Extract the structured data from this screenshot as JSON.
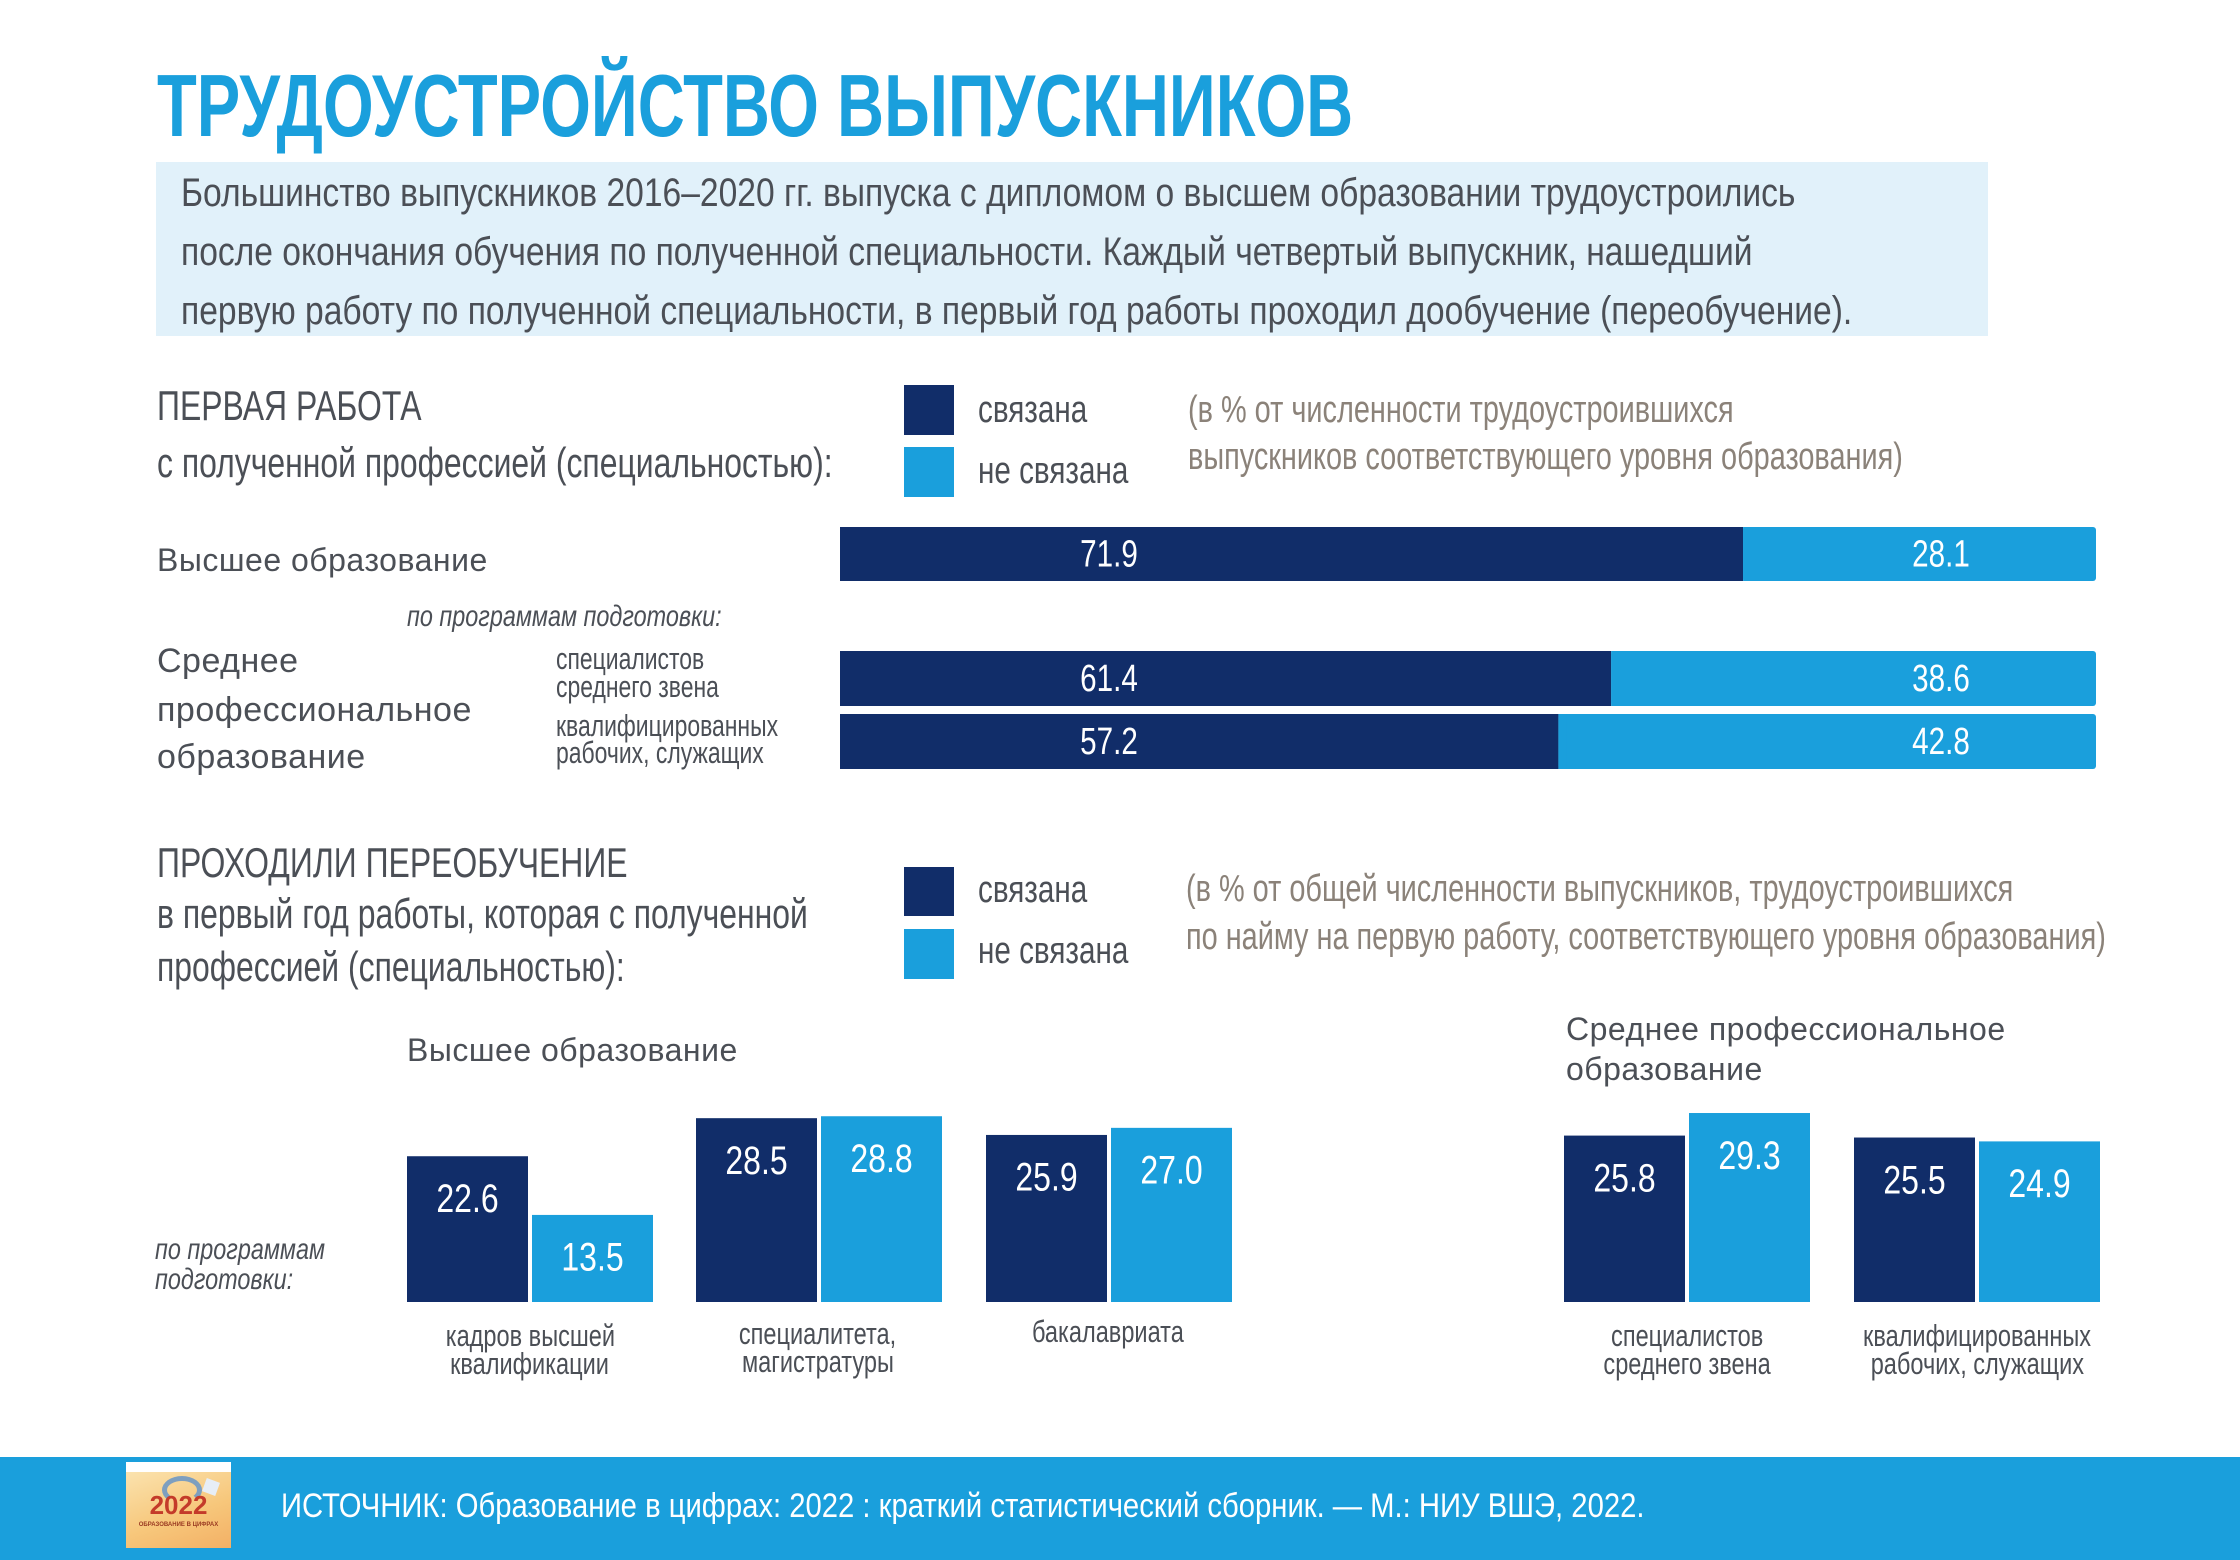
{
  "title": "ТРУДОУСТРОЙСТВО ВЫПУСКНИКОВ",
  "intro_lines": [
    "Большинство выпускников 2016–2020 гг. выпуска с дипломом о высшем образовании трудоустроились",
    "после окончания обучения по полученной специальности. Каждый четвертый выпускник, нашедший",
    "первую работу по полученной специальности, в первый год работы проходил дообучение (переобучение)."
  ],
  "colors": {
    "related": "#112d69",
    "not_related": "#1a9fdc",
    "title": "#1a9fdc",
    "note": "#8b8279"
  },
  "section1": {
    "heading_lines": [
      "ПЕРВАЯ РАБОТА",
      "с полученной профессией (специальностью):"
    ],
    "legend": {
      "related": "связана",
      "not_related": "не связана"
    },
    "note_lines": [
      "(в % от численности трудоустроившихся",
      "выпускников соответствующего уровня образования)"
    ],
    "higher_label": "Высшее образование",
    "programs_label": "по программам подготовки:",
    "spo_label_lines": [
      "Среднее",
      "профессиональное",
      "образование"
    ],
    "spo_programs": [
      [
        "специалистов",
        "среднего звена"
      ],
      [
        "квалифицированных",
        "рабочих, служащих"
      ]
    ]
  },
  "section2": {
    "heading_lines": [
      "ПРОХОДИЛИ ПЕРЕОБУЧЕНИЕ",
      "в первый год работы, которая с полученной",
      "профессией (специальностью):"
    ],
    "legend": {
      "related": "связана",
      "not_related": "не связана"
    },
    "note_lines": [
      "(в % от общей численности выпускников, трудоустроившихся",
      "по найму на первую работу, соответствующего уровня образования)"
    ],
    "higher_title": "Высшее образование",
    "spo_title_lines": [
      "Среднее профессиональное",
      "образование"
    ],
    "programs_label_lines": [
      "по программам",
      "подготовки:"
    ]
  },
  "chart_data": [
    {
      "type": "bar",
      "orientation": "horizontal-stacked-100",
      "title": "ПЕРВАЯ РАБОТА с полученной профессией (специальностью)",
      "unit": "% от численности трудоустроившихся выпускников соответствующего уровня образования",
      "categories": [
        "Высшее образование",
        "специалистов среднего звена",
        "квалифицированных рабочих, служащих"
      ],
      "series": [
        {
          "name": "связана",
          "values": [
            71.9,
            61.4,
            57.2
          ]
        },
        {
          "name": "не связана",
          "values": [
            28.1,
            38.6,
            42.8
          ]
        }
      ],
      "xlim": [
        0,
        100
      ]
    },
    {
      "type": "bar",
      "orientation": "vertical-grouped",
      "title": "Высшее образование",
      "categories": [
        [
          "кадров высшей",
          "квалификации"
        ],
        [
          "специалитета,",
          "магистратуры"
        ],
        [
          "бакалавриата"
        ]
      ],
      "series": [
        {
          "name": "связана",
          "values": [
            22.6,
            28.5,
            25.9
          ]
        },
        {
          "name": "не связана",
          "values": [
            13.5,
            28.8,
            27.0
          ]
        }
      ]
    },
    {
      "type": "bar",
      "orientation": "vertical-grouped",
      "title": "Среднее профессиональное образование",
      "categories": [
        [
          "специалистов",
          "среднего звена"
        ],
        [
          "квалифицированных",
          "рабочих, служащих"
        ]
      ],
      "series": [
        {
          "name": "связана",
          "values": [
            25.8,
            25.5
          ]
        },
        {
          "name": "не связана",
          "values": [
            29.3,
            24.9
          ]
        }
      ]
    }
  ],
  "footer": {
    "source": "ИСТОЧНИК: Образование в цифрах: 2022 : краткий статистический сборник. — М.: НИУ ВШЭ, 2022.",
    "cover_year": "2022",
    "cover_title": "ОБРАЗОВАНИЕ В ЦИФРАХ"
  }
}
